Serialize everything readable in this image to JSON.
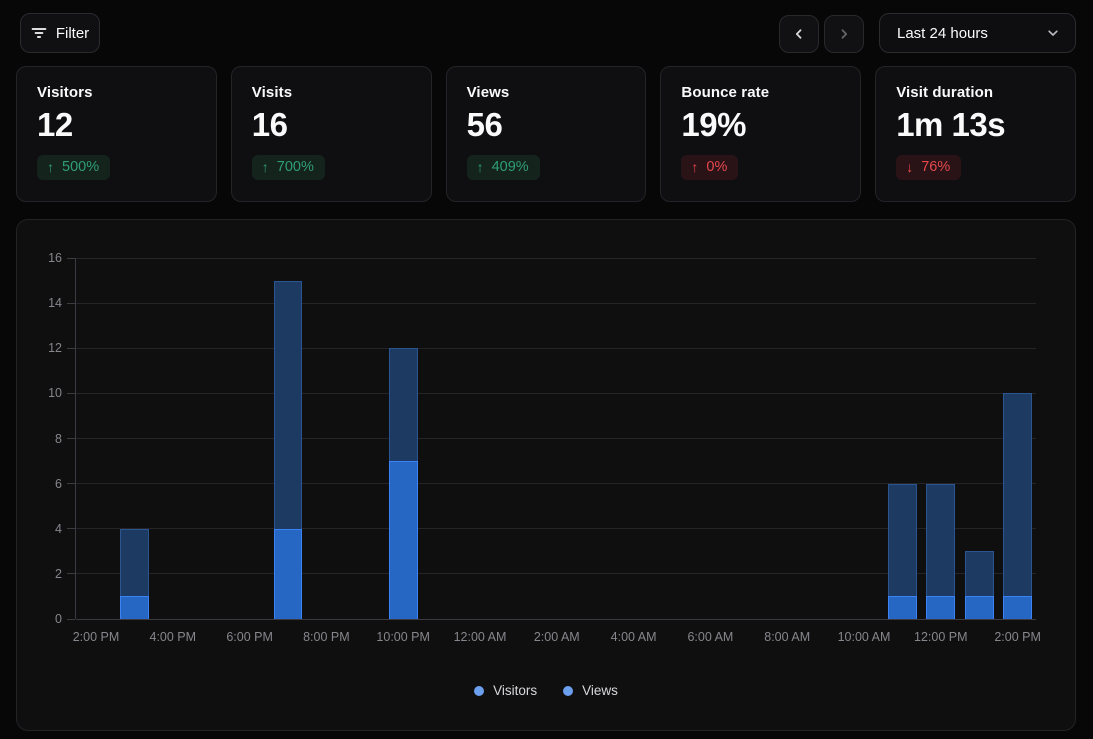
{
  "toolbar": {
    "filter_label": "Filter",
    "range_selected": "Last 24 hours"
  },
  "cards": [
    {
      "title": "Visitors",
      "value": "12",
      "change": "500%",
      "arrow_glyph": "↑",
      "tone": "positive"
    },
    {
      "title": "Visits",
      "value": "16",
      "change": "700%",
      "arrow_glyph": "↑",
      "tone": "positive"
    },
    {
      "title": "Views",
      "value": "56",
      "change": "409%",
      "arrow_glyph": "↑",
      "tone": "positive"
    },
    {
      "title": "Bounce rate",
      "value": "19%",
      "change": "0%",
      "arrow_glyph": "↑",
      "tone": "negative"
    },
    {
      "title": "Visit duration",
      "value": "1m 13s",
      "change": "76%",
      "arrow_glyph": "↓",
      "tone": "negative"
    }
  ],
  "chart_data": {
    "type": "bar",
    "title": "",
    "xlabel": "",
    "ylabel": "",
    "x_axis": {
      "start_label": "2:00 PM",
      "range_hours": 24,
      "tick_every_hours": 2,
      "tick_labels": [
        "2:00 PM",
        "4:00 PM",
        "6:00 PM",
        "8:00 PM",
        "10:00 PM",
        "12:00 AM",
        "2:00 AM",
        "4:00 AM",
        "6:00 AM",
        "8:00 AM",
        "10:00 AM",
        "12:00 PM",
        "2:00 PM"
      ]
    },
    "y_axis": {
      "min": 0,
      "max": 16,
      "ticks": [
        0,
        2,
        4,
        6,
        8,
        10,
        12,
        14,
        16
      ]
    },
    "grid": true,
    "bars": [
      {
        "time": "3:00 PM",
        "hours_from_start": 1,
        "visitors": 1,
        "views": 4
      },
      {
        "time": "7:00 PM",
        "hours_from_start": 5,
        "visitors": 4,
        "views": 15
      },
      {
        "time": "10:00 PM",
        "hours_from_start": 8,
        "visitors": 7,
        "views": 12
      },
      {
        "time": "11:00 AM",
        "hours_from_start": 21,
        "visitors": 1,
        "views": 6
      },
      {
        "time": "12:00 PM",
        "hours_from_start": 22,
        "visitors": 1,
        "views": 6
      },
      {
        "time": "1:00 PM",
        "hours_from_start": 23,
        "visitors": 1,
        "views": 3
      },
      {
        "time": "2:00 PM",
        "hours_from_start": 24,
        "visitors": 1,
        "views": 10
      }
    ],
    "series_styles": {
      "visitors": {
        "fill": "#2667c4",
        "border": "#3b82f6"
      },
      "views": {
        "fill": "#1d3a63",
        "border": "#2a5590"
      }
    },
    "legend": {
      "position": "bottom",
      "items": [
        {
          "label": "Visitors",
          "color": "#6b9fee"
        },
        {
          "label": "Views",
          "color": "#6b9fee"
        }
      ]
    }
  }
}
